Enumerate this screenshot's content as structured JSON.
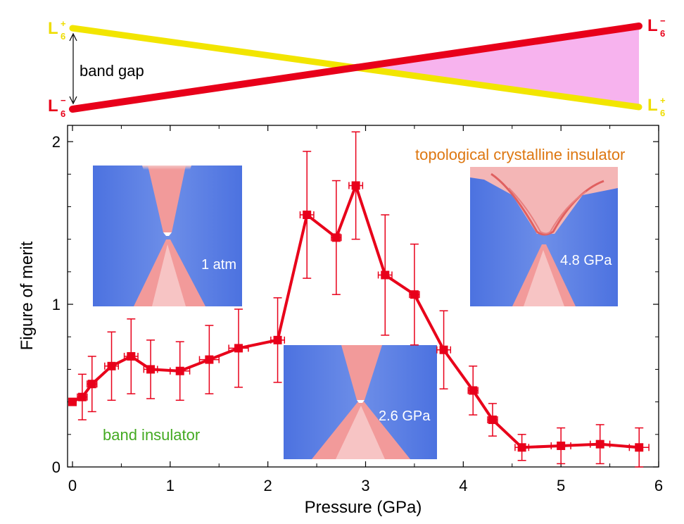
{
  "band_diagram": {
    "left_top": {
      "letter": "L",
      "sub": "6",
      "sup": "+",
      "color": "#eedd00"
    },
    "left_bottom": {
      "letter": "L",
      "sub": "6",
      "sup": "−",
      "color": "#e8001a"
    },
    "right_top": {
      "letter": "L",
      "sub": "6",
      "sup": "−",
      "color": "#e8001a"
    },
    "right_bottom": {
      "letter": "L",
      "sub": "6",
      "sup": "+",
      "color": "#eedd00"
    },
    "gap_label": "band gap",
    "yellow_band_color": "#f2e500",
    "red_band_color": "#e8001a",
    "inverted_region_color": "#f7b3ee"
  },
  "insets": [
    {
      "label": "1 atm",
      "gap": "open"
    },
    {
      "label": "2.6 GPa",
      "gap": "narrow"
    },
    {
      "label": "4.8 GPa",
      "gap": "dirac"
    }
  ],
  "annotations": {
    "band_insulator": {
      "text": "band insulator",
      "color": "#44aa22"
    },
    "tci": {
      "text": "topological crystalline insulator",
      "color": "#dd7711"
    }
  },
  "chart_data": {
    "type": "line",
    "xlabel": "Pressure (GPa)",
    "ylabel": "Figure of merit",
    "xlim": [
      0,
      6
    ],
    "ylim": [
      0,
      2.1
    ],
    "xticks": [
      0,
      1,
      2,
      3,
      4,
      5,
      6
    ],
    "yticks": [
      0,
      1,
      2
    ],
    "grid": false,
    "series": [
      {
        "color": "#e8001a",
        "marker": "square",
        "x": [
          0.0,
          0.1,
          0.2,
          0.4,
          0.6,
          0.8,
          1.1,
          1.4,
          1.7,
          2.1,
          2.4,
          2.7,
          2.9,
          3.2,
          3.5,
          3.8,
          4.1,
          4.3,
          4.6,
          5.0,
          5.4,
          5.8
        ],
        "y": [
          0.4,
          0.43,
          0.51,
          0.62,
          0.68,
          0.6,
          0.59,
          0.66,
          0.73,
          0.78,
          1.55,
          1.41,
          1.73,
          1.18,
          1.06,
          0.72,
          0.47,
          0.29,
          0.12,
          0.13,
          0.14,
          0.12
        ],
        "yerr": [
          0.0,
          0.14,
          0.17,
          0.21,
          0.23,
          0.18,
          0.18,
          0.21,
          0.24,
          0.26,
          0.39,
          0.35,
          0.33,
          0.37,
          0.31,
          0.24,
          0.15,
          0.1,
          0.08,
          0.11,
          0.12,
          0.12
        ],
        "xerr": [
          0.0,
          0.05,
          0.05,
          0.07,
          0.07,
          0.07,
          0.1,
          0.1,
          0.1,
          0.07,
          0.07,
          0.05,
          0.07,
          0.07,
          0.05,
          0.07,
          0.05,
          0.05,
          0.07,
          0.1,
          0.1,
          0.1
        ]
      }
    ]
  }
}
